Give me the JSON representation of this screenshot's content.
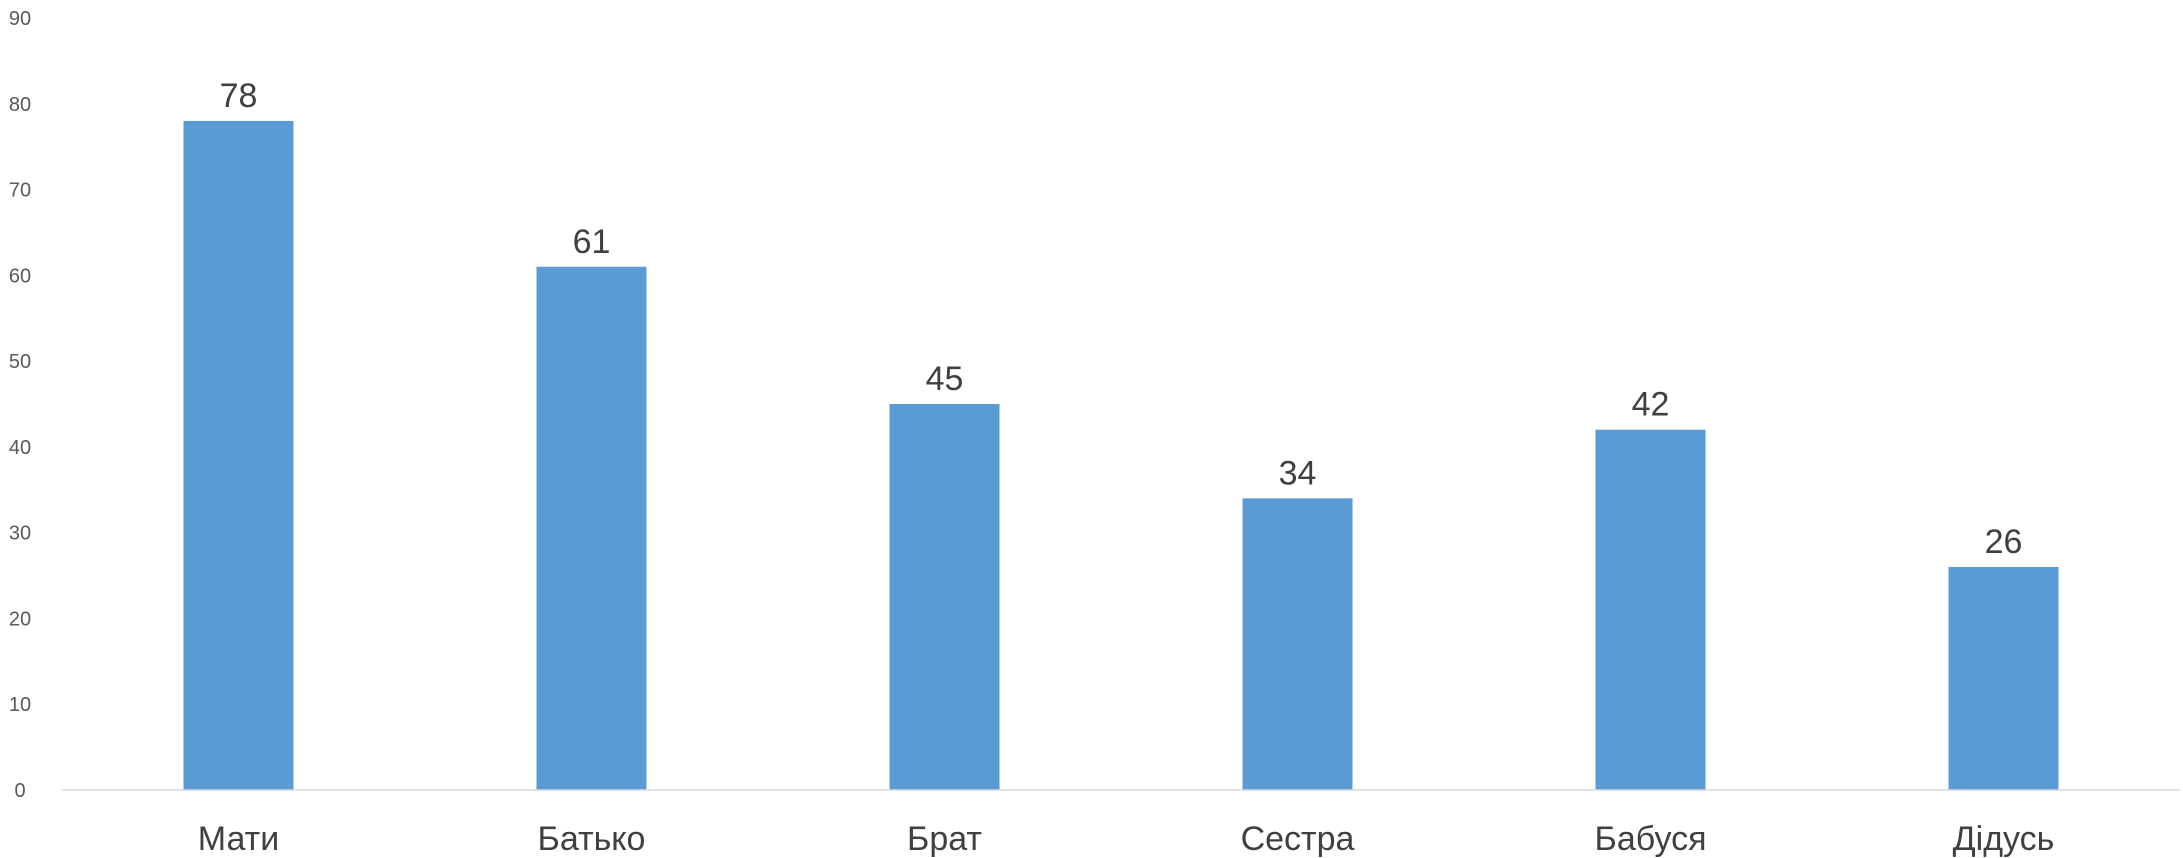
{
  "chart_data": {
    "type": "bar",
    "title": "",
    "xlabel": "",
    "ylabel": "",
    "categories": [
      "Мати",
      "Батько",
      "Брат",
      "Сестра",
      "Бабуся",
      "Дідусь"
    ],
    "values": [
      78,
      61,
      45,
      34,
      42,
      26
    ],
    "data_labels": [
      "78",
      "61",
      "45",
      "34",
      "42",
      "26"
    ],
    "ylim": [
      0,
      90
    ],
    "yticks": [
      0,
      10,
      20,
      30,
      40,
      50,
      60,
      70,
      80,
      90
    ],
    "ytick_labels": [
      "0",
      "10",
      "20",
      "30",
      "40",
      "50",
      "60",
      "70",
      "80",
      "90"
    ],
    "grid": false,
    "legend": "none",
    "colors": {
      "bar": "#5B9BD5",
      "axis": "#D9D9D9",
      "tick_text": "#595959",
      "label_text": "#404040"
    }
  }
}
